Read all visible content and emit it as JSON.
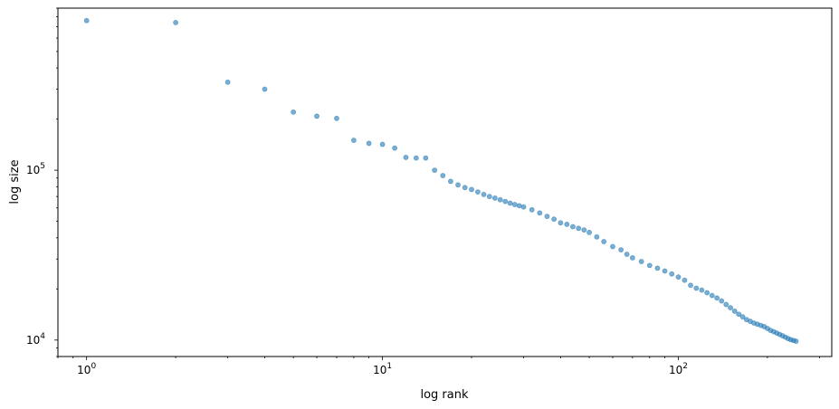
{
  "chart_data": {
    "type": "scatter",
    "xlabel": "log rank",
    "ylabel": "log size",
    "xscale": "log",
    "yscale": "log",
    "xlim": [
      0.8,
      330
    ],
    "ylim": [
      8000,
      900000
    ],
    "grid": false,
    "marker_color": "#1f77b4",
    "marker_alpha": 0.6,
    "x_ticks": [
      {
        "value": 1,
        "base": "10",
        "exp": "0"
      },
      {
        "value": 10,
        "base": "10",
        "exp": "1"
      },
      {
        "value": 100,
        "base": "10",
        "exp": "2"
      }
    ],
    "y_ticks": [
      {
        "value": 10000,
        "base": "10",
        "exp": "4"
      },
      {
        "value": 100000,
        "base": "10",
        "exp": "5"
      }
    ],
    "points": [
      [
        1,
        760000
      ],
      [
        2,
        740000
      ],
      [
        3,
        330000
      ],
      [
        4,
        300000
      ],
      [
        5,
        220000
      ],
      [
        6,
        208000
      ],
      [
        7,
        202000
      ],
      [
        8,
        150000
      ],
      [
        9,
        144000
      ],
      [
        10,
        142000
      ],
      [
        11,
        135000
      ],
      [
        12,
        119000
      ],
      [
        13,
        118000
      ],
      [
        14,
        118000
      ],
      [
        15,
        100000
      ],
      [
        16,
        93000
      ],
      [
        17,
        86000
      ],
      [
        18,
        82000
      ],
      [
        19,
        79000
      ],
      [
        20,
        77000
      ],
      [
        21,
        74500
      ],
      [
        22,
        72000
      ],
      [
        23,
        70000
      ],
      [
        24,
        68500
      ],
      [
        25,
        67000
      ],
      [
        26,
        65500
      ],
      [
        27,
        64000
      ],
      [
        28,
        62800
      ],
      [
        29,
        61800
      ],
      [
        30,
        60800
      ],
      [
        32,
        58500
      ],
      [
        34,
        56000
      ],
      [
        36,
        53500
      ],
      [
        38,
        51500
      ],
      [
        40,
        49000
      ],
      [
        42,
        48000
      ],
      [
        44,
        46500
      ],
      [
        46,
        45500
      ],
      [
        48,
        44500
      ],
      [
        50,
        43000
      ],
      [
        53,
        40500
      ],
      [
        56,
        38000
      ],
      [
        60,
        35500
      ],
      [
        64,
        34000
      ],
      [
        67,
        32000
      ],
      [
        70,
        30500
      ],
      [
        75,
        29000
      ],
      [
        80,
        27500
      ],
      [
        85,
        26500
      ],
      [
        90,
        25500
      ],
      [
        95,
        24500
      ],
      [
        100,
        23500
      ],
      [
        105,
        22500
      ],
      [
        110,
        21000
      ],
      [
        115,
        20200
      ],
      [
        120,
        19700
      ],
      [
        125,
        19000
      ],
      [
        130,
        18300
      ],
      [
        135,
        17700
      ],
      [
        140,
        17000
      ],
      [
        145,
        16200
      ],
      [
        150,
        15500
      ],
      [
        155,
        14800
      ],
      [
        160,
        14200
      ],
      [
        165,
        13700
      ],
      [
        170,
        13200
      ],
      [
        175,
        12900
      ],
      [
        180,
        12600
      ],
      [
        185,
        12400
      ],
      [
        190,
        12200
      ],
      [
        195,
        12000
      ],
      [
        200,
        11700
      ],
      [
        205,
        11400
      ],
      [
        210,
        11200
      ],
      [
        215,
        11000
      ],
      [
        220,
        10800
      ],
      [
        225,
        10600
      ],
      [
        230,
        10400
      ],
      [
        235,
        10200
      ],
      [
        240,
        10050
      ],
      [
        245,
        9950
      ],
      [
        250,
        9850
      ]
    ]
  }
}
